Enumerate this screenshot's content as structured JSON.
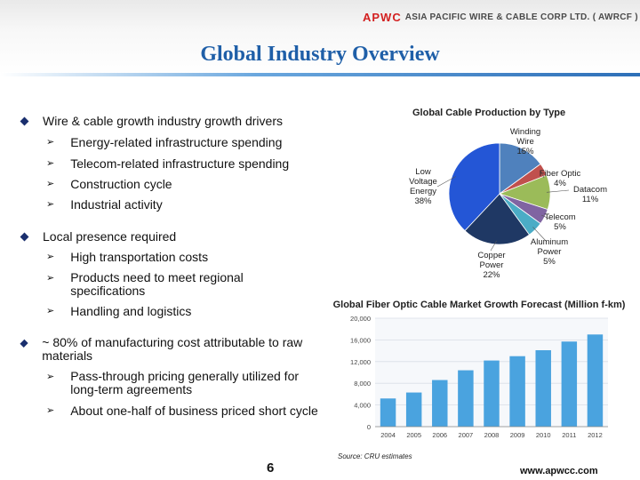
{
  "header": {
    "logo_mark": "APWC",
    "company": "ASIA PACIFIC WIRE & CABLE CORP LTD. ( AWRCF )",
    "title": "Global Industry Overview"
  },
  "bullets": [
    {
      "text": "Wire & cable growth industry growth drivers",
      "subs": [
        "Energy-related infrastructure spending",
        "Telecom-related infrastructure spending",
        "Construction cycle",
        "Industrial activity"
      ]
    },
    {
      "text": "Local presence required",
      "subs": [
        "High transportation costs",
        "Products need to meet regional specifications",
        "Handling and logistics"
      ]
    },
    {
      "text": "~ 80% of manufacturing cost attributable to raw materials",
      "subs": [
        "Pass-through pricing generally utilized for long-term agreements",
        "About one-half of business priced short cycle"
      ]
    }
  ],
  "chart_data": [
    {
      "type": "pie",
      "title": "Global Cable Production by Type",
      "slices": [
        {
          "label": "Winding Wire",
          "value": 15,
          "pct_label": "15%",
          "color": "#4f81bd"
        },
        {
          "label": "Fiber Optic",
          "value": 4,
          "pct_label": "4%",
          "color": "#c0504d"
        },
        {
          "label": "Datacom",
          "value": 11,
          "pct_label": "11%",
          "color": "#9bbb59"
        },
        {
          "label": "Telecom",
          "value": 5,
          "pct_label": "5%",
          "color": "#8064a2"
        },
        {
          "label": "Aluminum Power",
          "value": 5,
          "pct_label": "5%",
          "color": "#4bacc6"
        },
        {
          "label": "Copper Power",
          "value": 22,
          "pct_label": "22%",
          "color": "#1f3864"
        },
        {
          "label": "Low Voltage Energy",
          "value": 38,
          "pct_label": "38%",
          "color": "#2456d6"
        }
      ]
    },
    {
      "type": "bar",
      "title": "Global Fiber Optic Cable Market Growth Forecast (Million f-km)",
      "categories": [
        "2004",
        "2005",
        "2006",
        "2007",
        "2008",
        "2009",
        "2010",
        "2011",
        "2012"
      ],
      "values": [
        5200,
        6300,
        8600,
        10400,
        12200,
        13000,
        14100,
        15700,
        17000
      ],
      "ylim": [
        0,
        20000
      ],
      "yticks": [
        "0",
        "4,000",
        "8,000",
        "12,000",
        "16,000",
        "20,000"
      ],
      "ytick_values": [
        0,
        4000,
        8000,
        12000,
        16000,
        20000
      ],
      "source": "Source: CRU estimates"
    }
  ],
  "footer": {
    "page": "6",
    "site": "www.apwcc.com"
  }
}
